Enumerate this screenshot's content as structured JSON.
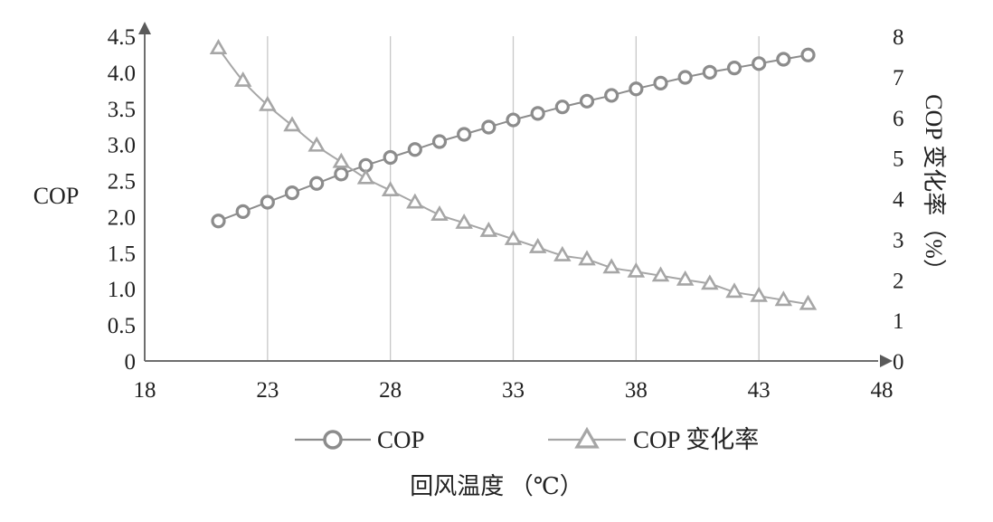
{
  "chart_data": {
    "type": "line",
    "title": "",
    "xlabel": "回风温度 （℃）",
    "ylabel": "COP",
    "y2label": "COP 变化率（%）",
    "xlim": [
      18,
      48
    ],
    "ylim": [
      0,
      4.5
    ],
    "y2lim": [
      0,
      8
    ],
    "x_ticks": [
      18,
      23,
      28,
      33,
      38,
      43,
      48
    ],
    "y_ticks": [
      "0",
      "0.5",
      "1.0",
      "1.5",
      "2.0",
      "2.5",
      "3.0",
      "3.5",
      "4.0",
      "4.5"
    ],
    "y2_ticks": [
      "0",
      "1",
      "2",
      "3",
      "4",
      "5",
      "6",
      "7",
      "8"
    ],
    "grid": "vertical",
    "legend_position": "bottom",
    "x": [
      21,
      22,
      23,
      24,
      25,
      26,
      27,
      28,
      29,
      30,
      31,
      32,
      33,
      34,
      35,
      36,
      37,
      38,
      39,
      40,
      41,
      42,
      43,
      44,
      45
    ],
    "series": [
      {
        "name": "COP",
        "axis": "left",
        "marker": "circle",
        "color": "#8c8c8c",
        "values": [
          1.94,
          2.07,
          2.2,
          2.33,
          2.46,
          2.59,
          2.71,
          2.82,
          2.93,
          3.04,
          3.14,
          3.24,
          3.34,
          3.43,
          3.52,
          3.6,
          3.68,
          3.77,
          3.85,
          3.93,
          4.0,
          4.06,
          4.12,
          4.18,
          4.24
        ]
      },
      {
        "name": "COP 变化率",
        "axis": "right",
        "marker": "triangle",
        "color": "#a6a6a6",
        "values": [
          7.7,
          6.9,
          6.3,
          5.8,
          5.3,
          4.9,
          4.5,
          4.2,
          3.9,
          3.6,
          3.4,
          3.2,
          3.0,
          2.8,
          2.6,
          2.5,
          2.3,
          2.2,
          2.1,
          2.0,
          1.9,
          1.7,
          1.6,
          1.5,
          1.4
        ]
      }
    ]
  }
}
